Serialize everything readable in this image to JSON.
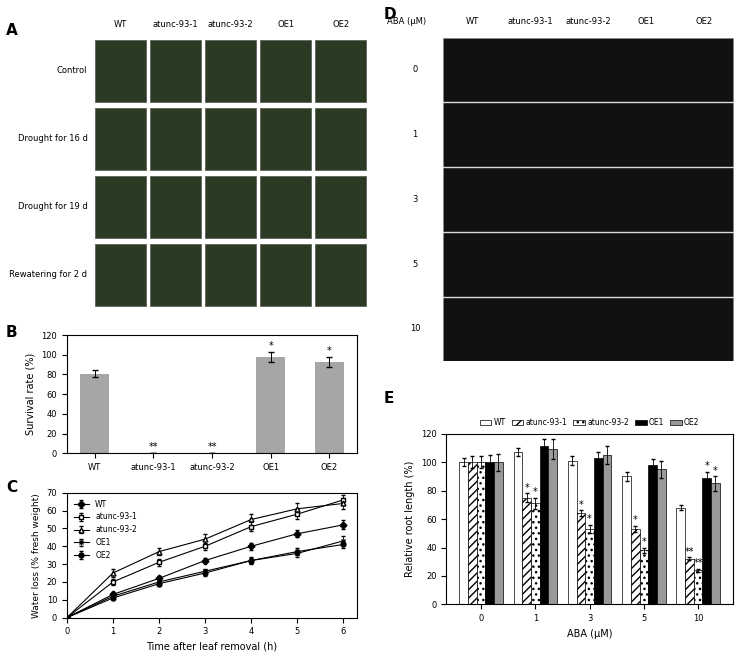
{
  "chart_data": [
    {
      "panel": "B",
      "type": "bar",
      "categories": [
        "WT",
        "atunc-93-1",
        "atunc-93-2",
        "OE1",
        "OE2"
      ],
      "values": [
        81,
        0,
        0,
        98,
        93
      ],
      "errors": [
        4,
        0,
        0,
        5,
        5
      ],
      "annotations": [
        null,
        "**",
        "**",
        "*",
        "*"
      ],
      "color": "#a6a6a6",
      "ylabel": "Survival rate (%)",
      "ylim": [
        0,
        120
      ],
      "yticks": [
        0,
        20,
        40,
        60,
        80,
        100,
        120
      ]
    },
    {
      "panel": "C",
      "type": "line",
      "x": [
        0,
        1,
        2,
        3,
        4,
        5,
        6
      ],
      "xlabel": "Time after leaf removal (h)",
      "ylabel": "Water loss (% fresh weight)",
      "xlim": [
        0,
        6.3
      ],
      "xticks": [
        0,
        1,
        2,
        3,
        4,
        5,
        6
      ],
      "ylim": [
        0,
        70
      ],
      "yticks": [
        0,
        10,
        20,
        30,
        40,
        50,
        60,
        70
      ],
      "legend": "upper left",
      "series": [
        {
          "name": "WT",
          "color": "#000000",
          "marker": "diamond",
          "values": [
            0,
            13,
            22,
            32,
            40,
            47,
            52
          ],
          "errors": [
            0,
            1.5,
            1.5,
            1.5,
            2,
            2,
            2.5
          ]
        },
        {
          "name": "atunc-93-1",
          "color": "#000000",
          "marker": "open_square",
          "values": [
            0,
            20,
            31,
            40,
            51,
            58,
            66
          ],
          "errors": [
            0,
            1.5,
            2,
            2,
            2.5,
            3,
            3
          ]
        },
        {
          "name": "atunc-93-2",
          "color": "#000000",
          "marker": "open_triangle",
          "values": [
            0,
            25,
            37,
            44,
            55,
            61,
            64
          ],
          "errors": [
            0,
            2,
            2,
            3,
            3,
            3,
            3
          ]
        },
        {
          "name": "OE1",
          "color": "#000000",
          "marker": "x",
          "values": [
            0,
            12,
            20,
            26,
            32,
            36,
            43
          ],
          "errors": [
            0,
            1.5,
            1.5,
            1.5,
            2,
            2,
            3
          ]
        },
        {
          "name": "OE2",
          "color": "#000000",
          "marker": "circle",
          "values": [
            0,
            11,
            19,
            25,
            32,
            37,
            41
          ],
          "errors": [
            0,
            1,
            1.5,
            1.5,
            1.5,
            2,
            2
          ]
        }
      ]
    },
    {
      "panel": "E",
      "type": "bar",
      "categories": [
        "0",
        "1",
        "3",
        "5",
        "10"
      ],
      "xlabel": "ABA (μM)",
      "ylabel": "Relative root length (%)",
      "ylim": [
        0,
        120
      ],
      "yticks": [
        0,
        20,
        40,
        60,
        80,
        100,
        120
      ],
      "legend": "upper center",
      "series": [
        {
          "name": "WT",
          "color": "#ffffff",
          "values": [
            100,
            107,
            101,
            90,
            68
          ],
          "errors": [
            3,
            3,
            3,
            3,
            2
          ],
          "annotations": [
            null,
            null,
            null,
            null,
            null
          ]
        },
        {
          "name": "atunc-93-1",
          "color": "#ffffff",
          "values": [
            100,
            75,
            64,
            53,
            32
          ],
          "errors": [
            4,
            3,
            2,
            2,
            1
          ],
          "annotations": [
            null,
            "*",
            "*",
            "*",
            "**"
          ]
        },
        {
          "name": "atunc-93-2",
          "color": "#ffffff",
          "values": [
            100,
            71,
            53,
            38,
            24
          ],
          "errors": [
            4,
            4,
            3,
            2,
            1
          ],
          "annotations": [
            null,
            "*",
            "*",
            "*",
            "**"
          ]
        },
        {
          "name": "OE1",
          "color": "#000000",
          "values": [
            100,
            111,
            103,
            98,
            89
          ],
          "errors": [
            5,
            5,
            4,
            4,
            4
          ],
          "annotations": [
            null,
            null,
            null,
            null,
            "*"
          ]
        },
        {
          "name": "OE2",
          "color": "#999999",
          "values": [
            100,
            109,
            105,
            95,
            85
          ],
          "errors": [
            6,
            7,
            6,
            6,
            5
          ],
          "annotations": [
            null,
            null,
            null,
            null,
            "*"
          ]
        }
      ]
    }
  ],
  "photo_panels": [
    {
      "panel": "A",
      "columns": [
        "WT",
        "atunc-93-1",
        "atunc-93-2",
        "OE1",
        "OE2"
      ],
      "rows": [
        "Control",
        "Drought for 16 d",
        "Drought for 19 d",
        "Rewatering for 2 d"
      ]
    },
    {
      "panel": "D",
      "row_header": "ABA (μM)",
      "columns": [
        "WT",
        "atunc-93-1",
        "atunc-93-2",
        "OE1",
        "OE2"
      ],
      "rows": [
        0,
        1,
        3,
        5,
        10
      ]
    }
  ]
}
